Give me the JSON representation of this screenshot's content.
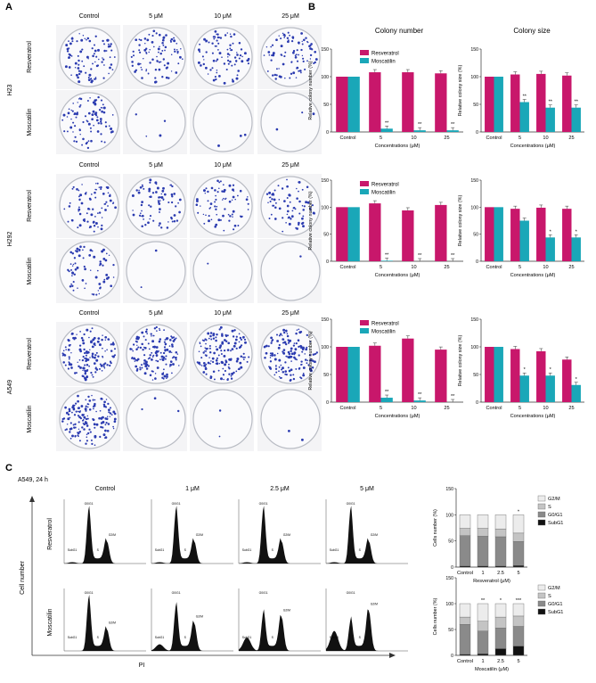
{
  "panels": {
    "A": "A",
    "B": "B",
    "C": "C"
  },
  "panel_a": {
    "columns": [
      "Control",
      "5 μM",
      "10 μM",
      "25 μM"
    ],
    "cell_lines": [
      "H23",
      "H292",
      "A549"
    ],
    "treatments": [
      "Resveratrol",
      "Moscatilin"
    ]
  },
  "panel_b": {
    "headers": [
      "Colony number",
      "Colony size"
    ],
    "legend": [
      "Resveratrol",
      "Moscatilin"
    ],
    "ylabel_number": "Relative colony number (%)",
    "ylabel_size": "Relative colony size (%)",
    "xlabel": "Concentrations (μM)"
  },
  "panel_c": {
    "subtitle": "A549, 24 h",
    "columns": [
      "Control",
      "1 μM",
      "2.5 μM",
      "5 μM"
    ],
    "rows": [
      "Resveratrol",
      "Moscatilin"
    ],
    "ylabel": "Cell number",
    "xlabel": "PI",
    "peak_labels": [
      "G0/G1",
      "G2/M",
      "S",
      "SubG1"
    ],
    "stack_ylabel": "Cells number (%)",
    "stack_xlabel_res": "Resveratrol (μM)",
    "stack_xlabel_mos": "Moscatilin (μM)",
    "stack_legend": [
      "G2/M",
      "S",
      "G0/G1",
      "SubG1"
    ]
  },
  "colors": {
    "resveratrol": "#c8176b",
    "moscatilin": "#1aa7b8",
    "colony": "#2b3bb0",
    "subg1": "#111111",
    "g0g1": "#8a8a8a",
    "s": "#c4c4c4",
    "g2m": "#ececec"
  },
  "chart_data": [
    {
      "type": "bar",
      "id": "b-h23-number",
      "categories": [
        "Control",
        "5",
        "10",
        "25"
      ],
      "series": [
        {
          "name": "Resveratrol",
          "values": [
            100,
            108,
            108,
            106
          ]
        },
        {
          "name": "Moscatilin",
          "values": [
            100,
            6,
            3,
            3
          ]
        }
      ],
      "annotations": [
        "",
        "**",
        "**",
        "**"
      ],
      "ylim": [
        0,
        150
      ],
      "yticks": [
        0,
        50,
        100,
        150
      ],
      "ylabel": "Relative colony number (%)",
      "xlabel": "Concentrations (μM)"
    },
    {
      "type": "bar",
      "id": "b-h23-size",
      "categories": [
        "Control",
        "5",
        "10",
        "25"
      ],
      "series": [
        {
          "name": "Resveratrol",
          "values": [
            100,
            104,
            105,
            102
          ]
        },
        {
          "name": "Moscatilin",
          "values": [
            100,
            54,
            44,
            44
          ]
        }
      ],
      "annotations": [
        "",
        "**",
        "**",
        "**"
      ],
      "ylim": [
        0,
        150
      ],
      "yticks": [
        0,
        50,
        100,
        150
      ],
      "ylabel": "Relative colony size (%)",
      "xlabel": "Concentrations (μM)"
    },
    {
      "type": "bar",
      "id": "b-h292-number",
      "categories": [
        "Control",
        "5",
        "10",
        "25"
      ],
      "series": [
        {
          "name": "Resveratrol",
          "values": [
            100,
            107,
            94,
            104
          ]
        },
        {
          "name": "Moscatilin",
          "values": [
            100,
            1,
            0,
            0
          ]
        }
      ],
      "annotations": [
        "",
        "**",
        "**",
        "**"
      ],
      "ylim": [
        0,
        150
      ],
      "yticks": [
        0,
        50,
        100,
        150
      ],
      "ylabel": "Relative colony number (%)",
      "xlabel": "Concentrations (μM)"
    },
    {
      "type": "bar",
      "id": "b-h292-size",
      "categories": [
        "Control",
        "5",
        "10",
        "25"
      ],
      "series": [
        {
          "name": "Resveratrol",
          "values": [
            100,
            97,
            99,
            97
          ]
        },
        {
          "name": "Moscatilin",
          "values": [
            100,
            75,
            44,
            44
          ]
        }
      ],
      "annotations": [
        "",
        "",
        "*",
        "*"
      ],
      "ylim": [
        0,
        150
      ],
      "yticks": [
        0,
        50,
        100,
        150
      ],
      "ylabel": "Relative colony size (%)",
      "xlabel": "Concentrations (μM)"
    },
    {
      "type": "bar",
      "id": "b-a549-number",
      "categories": [
        "Control",
        "5",
        "10",
        "25"
      ],
      "series": [
        {
          "name": "Resveratrol",
          "values": [
            100,
            102,
            115,
            95
          ]
        },
        {
          "name": "Moscatilin",
          "values": [
            100,
            8,
            3,
            0
          ]
        }
      ],
      "annotations": [
        "",
        "**",
        "**",
        "**"
      ],
      "ylim": [
        0,
        150
      ],
      "yticks": [
        0,
        50,
        100,
        150
      ],
      "ylabel": "Relative colony number (%)",
      "xlabel": "Concentrations (μM)"
    },
    {
      "type": "bar",
      "id": "b-a549-size",
      "categories": [
        "Control",
        "5",
        "10",
        "25"
      ],
      "series": [
        {
          "name": "Resveratrol",
          "values": [
            100,
            96,
            92,
            77
          ]
        },
        {
          "name": "Moscatilin",
          "values": [
            100,
            48,
            48,
            31
          ]
        }
      ],
      "annotations": [
        "",
        "*",
        "*",
        "*"
      ],
      "ylim": [
        0,
        150
      ],
      "yticks": [
        0,
        50,
        100,
        150
      ],
      "ylabel": "Relative colony size (%)",
      "xlabel": "Concentrations (μM)"
    },
    {
      "type": "bar",
      "id": "c-stack-res",
      "stacked": true,
      "categories": [
        "Control",
        "1",
        "2.5",
        "5"
      ],
      "series": [
        {
          "name": "SubG1",
          "values": [
            2,
            2,
            2,
            3
          ]
        },
        {
          "name": "G0/G1",
          "values": [
            58,
            57,
            56,
            46
          ]
        },
        {
          "name": "S",
          "values": [
            14,
            15,
            15,
            16
          ]
        },
        {
          "name": "G2/M",
          "values": [
            26,
            26,
            27,
            35
          ]
        }
      ],
      "annotations": [
        "",
        "",
        "",
        "*"
      ],
      "ylim": [
        0,
        150
      ],
      "yticks": [
        0,
        50,
        100,
        150
      ],
      "ylabel": "Cells number (%)",
      "xlabel": "Resveratrol (μM)"
    },
    {
      "type": "bar",
      "id": "c-stack-mos",
      "stacked": true,
      "categories": [
        "Control",
        "1",
        "2.5",
        "5"
      ],
      "series": [
        {
          "name": "SubG1",
          "values": [
            2,
            3,
            13,
            18
          ]
        },
        {
          "name": "G0/G1",
          "values": [
            58,
            44,
            40,
            38
          ]
        },
        {
          "name": "S",
          "values": [
            14,
            19,
            21,
            20
          ]
        },
        {
          "name": "G2/M",
          "values": [
            26,
            34,
            26,
            24
          ]
        }
      ],
      "annotations": [
        "",
        "**",
        "*",
        "***"
      ],
      "ylim": [
        0,
        150
      ],
      "yticks": [
        0,
        50,
        100,
        150
      ],
      "ylabel": "Cells number (%)",
      "xlabel": "Moscatilin (μM)"
    }
  ]
}
